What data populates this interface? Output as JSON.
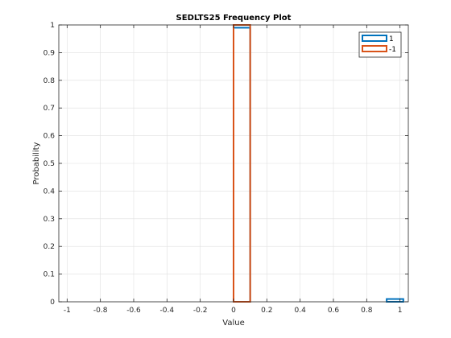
{
  "chart_data": {
    "type": "bar",
    "title": "SEDLTS25 Frequency Plot",
    "xlabel": "Value",
    "ylabel": "Probability",
    "xlim": [
      -1.05,
      1.05
    ],
    "ylim": [
      0,
      1
    ],
    "xticks": [
      -1,
      -0.8,
      -0.6,
      -0.4,
      -0.2,
      0,
      0.2,
      0.4,
      0.6,
      0.8,
      1
    ],
    "xtick_labels": [
      "-1",
      "-0.8",
      "-0.6",
      "-0.4",
      "-0.2",
      "0",
      "0.2",
      "0.4",
      "0.6",
      "0.8",
      "1"
    ],
    "yticks": [
      0,
      0.1,
      0.2,
      0.3,
      0.4,
      0.5,
      0.6,
      0.7,
      0.8,
      0.9,
      1
    ],
    "ytick_labels": [
      "0",
      "0.1",
      "0.2",
      "0.3",
      "0.4",
      "0.5",
      "0.6",
      "0.7",
      "0.8",
      "0.9",
      "1"
    ],
    "grid": true,
    "legend_position": "top-right",
    "series": [
      {
        "name": "1",
        "color": "#0072BD",
        "bins": [
          {
            "x0": -1.0,
            "x1": 0.0,
            "value": 0
          },
          {
            "x0": 0.0,
            "x1": 0.1,
            "value": 0.99
          },
          {
            "x0": 0.1,
            "x1": 0.92,
            "value": 0
          },
          {
            "x0": 0.92,
            "x1": 1.02,
            "value": 0.01
          }
        ]
      },
      {
        "name": "-1",
        "color": "#D95319",
        "bins": [
          {
            "x0": -1.0,
            "x1": 0.0,
            "value": 0
          },
          {
            "x0": 0.0,
            "x1": 0.1,
            "value": 1.0
          },
          {
            "x0": 0.1,
            "x1": 1.02,
            "value": 0
          }
        ]
      }
    ]
  }
}
